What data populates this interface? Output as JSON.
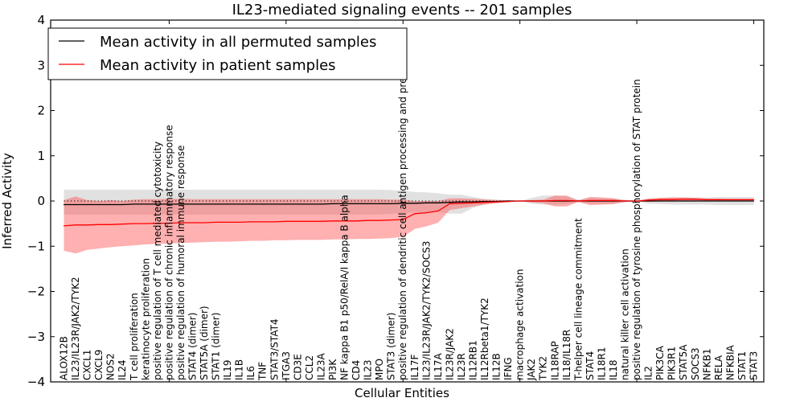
{
  "chart_data": {
    "type": "line",
    "title": "IL23-mediated signaling events -- 201 samples",
    "xlabel": "Cellular Entities",
    "ylabel": "Inferred Activity",
    "ylim": [
      -4,
      4
    ],
    "xlim": [
      0,
      61
    ],
    "yticks": [
      "−4",
      "−3",
      "−2",
      "−1",
      "0",
      "1",
      "2",
      "3",
      "4"
    ],
    "ytick_values": [
      -4,
      -3,
      -2,
      -1,
      0,
      1,
      2,
      3,
      4
    ],
    "xtick_positions": [
      10,
      20,
      30,
      40,
      50,
      60
    ],
    "grid": false,
    "legend_position": "top-left",
    "legend": [
      {
        "label": "Mean activity in all permuted samples",
        "color": "#000000"
      },
      {
        "label": "Mean activity in patient samples",
        "color": "#ff0000"
      }
    ],
    "categories": [
      "ALOX12B",
      "IL23/IL23R/JAK2/TYK2",
      "CXCL1",
      "CXCL9",
      "NOS2",
      "IL24",
      "T cell proliferation",
      "keratinocyte proliferation",
      "positive regulation of T cell mediated cytotoxicity",
      "positive regulation of chronic inflammatory response",
      "positive regulation of humoral immune response",
      "STAT4 (dimer)",
      "STAT5A (dimer)",
      "STAT1 (dimer)",
      "IL19",
      "IL1B",
      "IL6",
      "TNF",
      "STAT3/STAT4",
      "ITGA3",
      "CD3E",
      "CCL2",
      "IL23A",
      "PI3K",
      "NF kappa B1 p50/RelA/I kappa B alpha",
      "CD4",
      "IL23",
      "MPO",
      "STAT3 (dimer)",
      "positive regulation of dendritic cell antigen processing and presentation",
      "IL17F",
      "IL23/IL23R/JAK2/TYK2/SOCS3",
      "IL17A",
      "IL23R/JAK2",
      "IL23R",
      "IL12RB1",
      "IL12Rbeta1/TYK2",
      "IL12B",
      "IFNG",
      "macrophage activation",
      "JAK2",
      "TYK2",
      "IL18RAP",
      "IL18/IL18R",
      "T-helper cell lineage commitment",
      "STAT4",
      "IL18R1",
      "IL18",
      "natural killer cell activation",
      "positive regulation of tyrosine phosphorylation of STAT protein",
      "IL2",
      "PIK3CA",
      "PIK3R1",
      "STAT5A",
      "SOCS3",
      "NFKB1",
      "RELA",
      "NFKBIA",
      "STAT1",
      "STAT3"
    ],
    "series": [
      {
        "name": "Mean activity in all permuted samples",
        "color": "#000000",
        "values": [
          -0.08,
          -0.08,
          -0.08,
          -0.08,
          -0.08,
          -0.08,
          -0.07,
          -0.07,
          -0.07,
          -0.07,
          -0.07,
          -0.07,
          -0.07,
          -0.07,
          -0.07,
          -0.07,
          -0.07,
          -0.07,
          -0.07,
          -0.07,
          -0.07,
          -0.07,
          -0.07,
          -0.06,
          -0.06,
          -0.06,
          -0.06,
          -0.06,
          -0.06,
          -0.05,
          -0.05,
          -0.04,
          -0.04,
          -0.03,
          -0.02,
          -0.02,
          -0.01,
          -0.01,
          0.0,
          0.0,
          0.0,
          0.0,
          0.0,
          0.0,
          0.0,
          0.0,
          0.0,
          0.0,
          0.0,
          0.0,
          0.0,
          0.0,
          0.0,
          0.0,
          0.0,
          0.0,
          0.0,
          0.0,
          0.0,
          0.0
        ],
        "band_upper": [
          0.25,
          0.25,
          0.25,
          0.25,
          0.25,
          0.25,
          0.25,
          0.25,
          0.25,
          0.25,
          0.25,
          0.25,
          0.25,
          0.25,
          0.25,
          0.25,
          0.25,
          0.25,
          0.25,
          0.25,
          0.25,
          0.25,
          0.25,
          0.25,
          0.25,
          0.25,
          0.25,
          0.25,
          0.24,
          0.23,
          0.2,
          0.19,
          0.17,
          0.14,
          0.14,
          0.09,
          0.05,
          0.03,
          0.02,
          0.0,
          0.07,
          0.12,
          0.12,
          0.1,
          0.03,
          0.07,
          0.06,
          0.06,
          0.03,
          0.0,
          0.06,
          0.07,
          0.08,
          0.08,
          0.08,
          0.08,
          0.09,
          0.09,
          0.09,
          0.09
        ],
        "band_lower": [
          -0.3,
          -0.3,
          -0.3,
          -0.3,
          -0.3,
          -0.3,
          -0.3,
          -0.3,
          -0.3,
          -0.3,
          -0.3,
          -0.3,
          -0.3,
          -0.3,
          -0.3,
          -0.3,
          -0.3,
          -0.3,
          -0.3,
          -0.3,
          -0.3,
          -0.3,
          -0.3,
          -0.3,
          -0.3,
          -0.3,
          -0.3,
          -0.3,
          -0.28,
          -0.27,
          -0.25,
          -0.25,
          -0.24,
          -0.28,
          -0.28,
          -0.15,
          -0.07,
          -0.05,
          -0.03,
          0.0,
          -0.06,
          -0.08,
          -0.08,
          -0.07,
          -0.03,
          -0.06,
          -0.06,
          -0.06,
          -0.03,
          0.0,
          -0.06,
          -0.07,
          -0.08,
          -0.08,
          -0.08,
          -0.08,
          -0.09,
          -0.09,
          -0.09,
          -0.09
        ]
      },
      {
        "name": "Mean activity in patient samples",
        "color": "#ff0000",
        "values": [
          -0.55,
          -0.53,
          -0.53,
          -0.52,
          -0.52,
          -0.51,
          -0.5,
          -0.5,
          -0.49,
          -0.49,
          -0.48,
          -0.48,
          -0.48,
          -0.47,
          -0.47,
          -0.47,
          -0.46,
          -0.46,
          -0.46,
          -0.45,
          -0.45,
          -0.45,
          -0.45,
          -0.44,
          -0.44,
          -0.44,
          -0.43,
          -0.43,
          -0.42,
          -0.41,
          -0.28,
          -0.26,
          -0.22,
          -0.06,
          -0.05,
          -0.04,
          -0.03,
          -0.02,
          -0.01,
          0.0,
          0.0,
          0.0,
          0.01,
          0.01,
          0.0,
          0.01,
          0.01,
          0.01,
          0.0,
          0.0,
          0.02,
          0.03,
          0.03,
          0.04,
          0.04,
          0.03,
          0.03,
          0.03,
          0.03,
          0.03
        ],
        "band_upper": [
          0.02,
          0.1,
          0.02,
          0.0,
          0.02,
          0.0,
          0.03,
          0.04,
          0.04,
          0.05,
          0.05,
          0.04,
          0.04,
          0.04,
          0.04,
          0.04,
          0.04,
          0.04,
          0.04,
          0.04,
          0.04,
          0.04,
          0.04,
          0.04,
          0.04,
          0.04,
          0.04,
          0.04,
          0.03,
          0.03,
          0.0,
          0.0,
          0.0,
          0.06,
          0.06,
          0.05,
          0.03,
          0.02,
          0.01,
          0.0,
          0.02,
          0.03,
          0.12,
          0.12,
          0.01,
          0.09,
          0.08,
          0.06,
          0.01,
          0.0,
          0.05,
          0.07,
          0.08,
          0.08,
          0.07,
          0.05,
          0.05,
          0.04,
          0.04,
          0.04
        ],
        "band_lower": [
          -1.1,
          -1.16,
          -1.08,
          -1.05,
          -1.02,
          -1.0,
          -0.98,
          -0.96,
          -0.95,
          -0.94,
          -0.93,
          -0.92,
          -0.91,
          -0.9,
          -0.9,
          -0.89,
          -0.88,
          -0.88,
          -0.87,
          -0.87,
          -0.86,
          -0.86,
          -0.86,
          -0.85,
          -0.85,
          -0.84,
          -0.84,
          -0.83,
          -0.82,
          -0.79,
          -0.62,
          -0.56,
          -0.48,
          -0.2,
          -0.16,
          -0.12,
          -0.08,
          -0.05,
          -0.02,
          0.0,
          -0.03,
          -0.05,
          -0.12,
          -0.12,
          -0.02,
          -0.09,
          -0.08,
          -0.07,
          -0.02,
          0.0,
          -0.02,
          -0.01,
          -0.01,
          0.0,
          0.0,
          0.0,
          0.0,
          0.0,
          0.0,
          0.0
        ]
      }
    ]
  }
}
